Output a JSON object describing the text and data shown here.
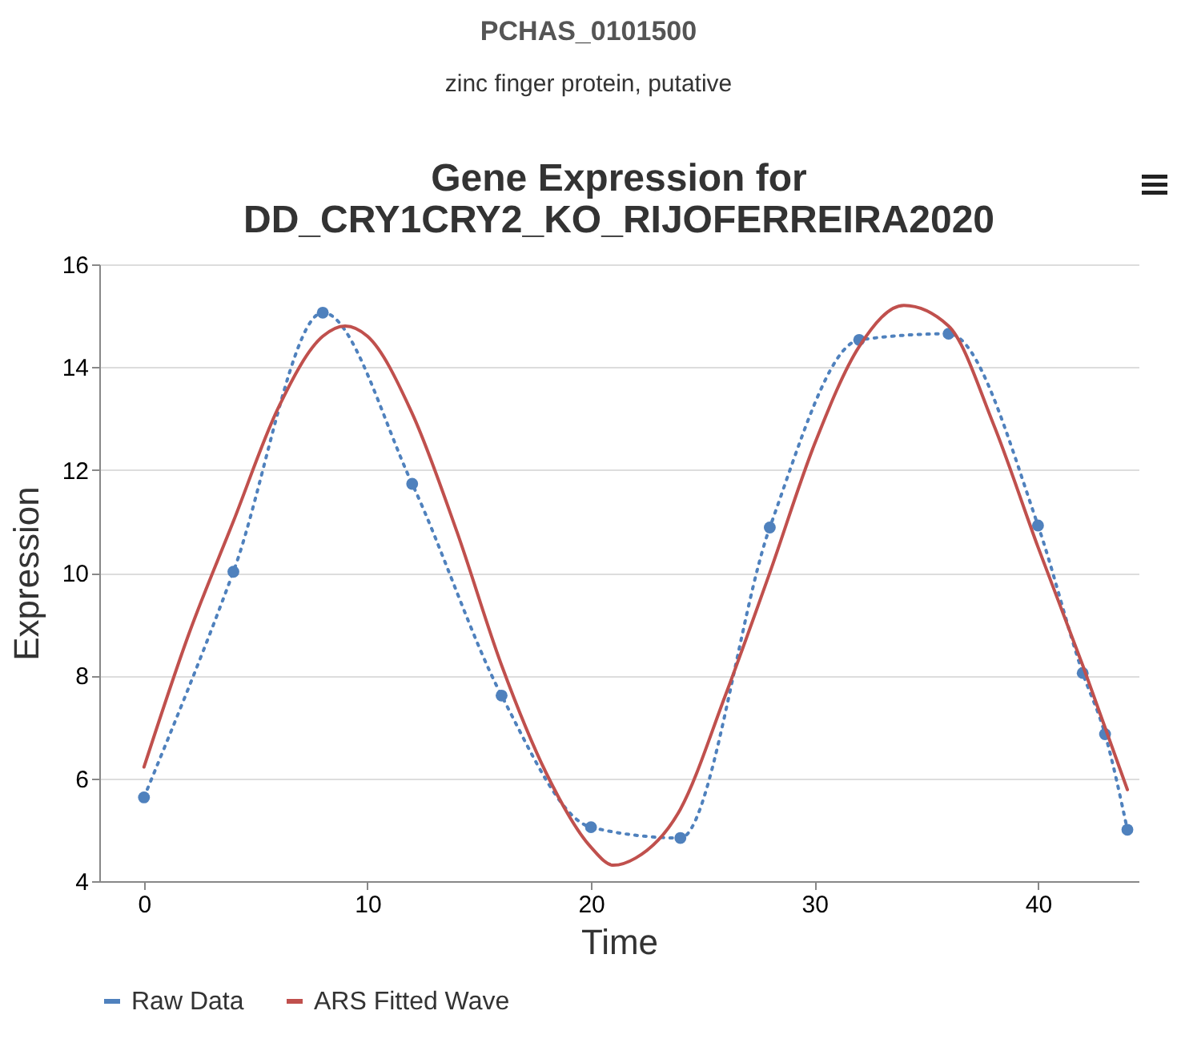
{
  "chart_data": {
    "type": "line",
    "title": "Gene Expression for\nDD_CRY1CRY2_KO_RIJOFERREIRA2020",
    "annotations": [
      "PCHAS_0101500",
      "zinc finger protein, putative"
    ],
    "xlabel": "Time",
    "ylabel": "Expression",
    "xlim": [
      -2,
      44.5
    ],
    "xticks": [
      0,
      10,
      20,
      30,
      40
    ],
    "ylim": [
      4,
      16
    ],
    "yticks": [
      4,
      6,
      8,
      10,
      12,
      14,
      16
    ],
    "grid": "y",
    "legend": "bottom",
    "series": [
      {
        "name": "Raw Data",
        "color": "#4f81bd",
        "marker": "circle",
        "line_style": "dotted",
        "x": [
          0,
          4,
          8,
          12,
          16,
          20,
          24,
          28,
          32,
          36,
          40,
          42,
          43,
          44
        ],
        "values": [
          5.63,
          10.02,
          15.06,
          11.73,
          7.61,
          5.05,
          4.84,
          10.88,
          14.53,
          14.65,
          10.92,
          8.05,
          6.86,
          5.0
        ]
      },
      {
        "name": "ARS Fitted Wave",
        "color": "#c0504d",
        "marker": "none",
        "line_style": "solid",
        "x": [
          0,
          2,
          4,
          6,
          8,
          9,
          10,
          12,
          14,
          16,
          18,
          20,
          21,
          22,
          24,
          26,
          28,
          30,
          32,
          34,
          36,
          38,
          40,
          42,
          44
        ],
        "values": [
          6.22,
          8.8,
          11.0,
          13.2,
          14.6,
          14.8,
          14.6,
          13.1,
          10.8,
          8.2,
          6.1,
          4.66,
          4.31,
          4.45,
          5.4,
          7.6,
          10.0,
          12.5,
          14.4,
          15.2,
          14.8,
          12.9,
          10.5,
          8.2,
          5.78
        ]
      }
    ]
  }
}
